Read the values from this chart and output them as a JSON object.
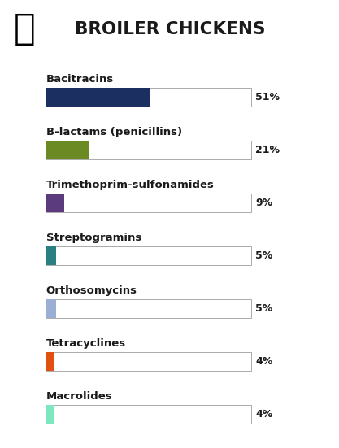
{
  "title": "BROILER CHICKENS",
  "categories": [
    "Bacitracins",
    "B-lactams (penicillins)",
    "Trimethoprim-sulfonamides",
    "Streptogramins",
    "Orthosomycins",
    "Tetracyclines",
    "Macrolides"
  ],
  "values": [
    51,
    21,
    9,
    5,
    5,
    4,
    4
  ],
  "colors": [
    "#1b3060",
    "#6b8a24",
    "#5b3a7e",
    "#2a8080",
    "#9bafd4",
    "#e05010",
    "#7de8c0"
  ],
  "label_color": "#1a1a1a",
  "title_color": "#1a1a1a",
  "bar_bg_color": "#ffffff",
  "bar_border_color": "#aaaaaa",
  "pct_color": "#1a1a1a",
  "background_color": "#ffffff",
  "figwidth": 4.17,
  "figheight": 5.51,
  "dpi": 100
}
